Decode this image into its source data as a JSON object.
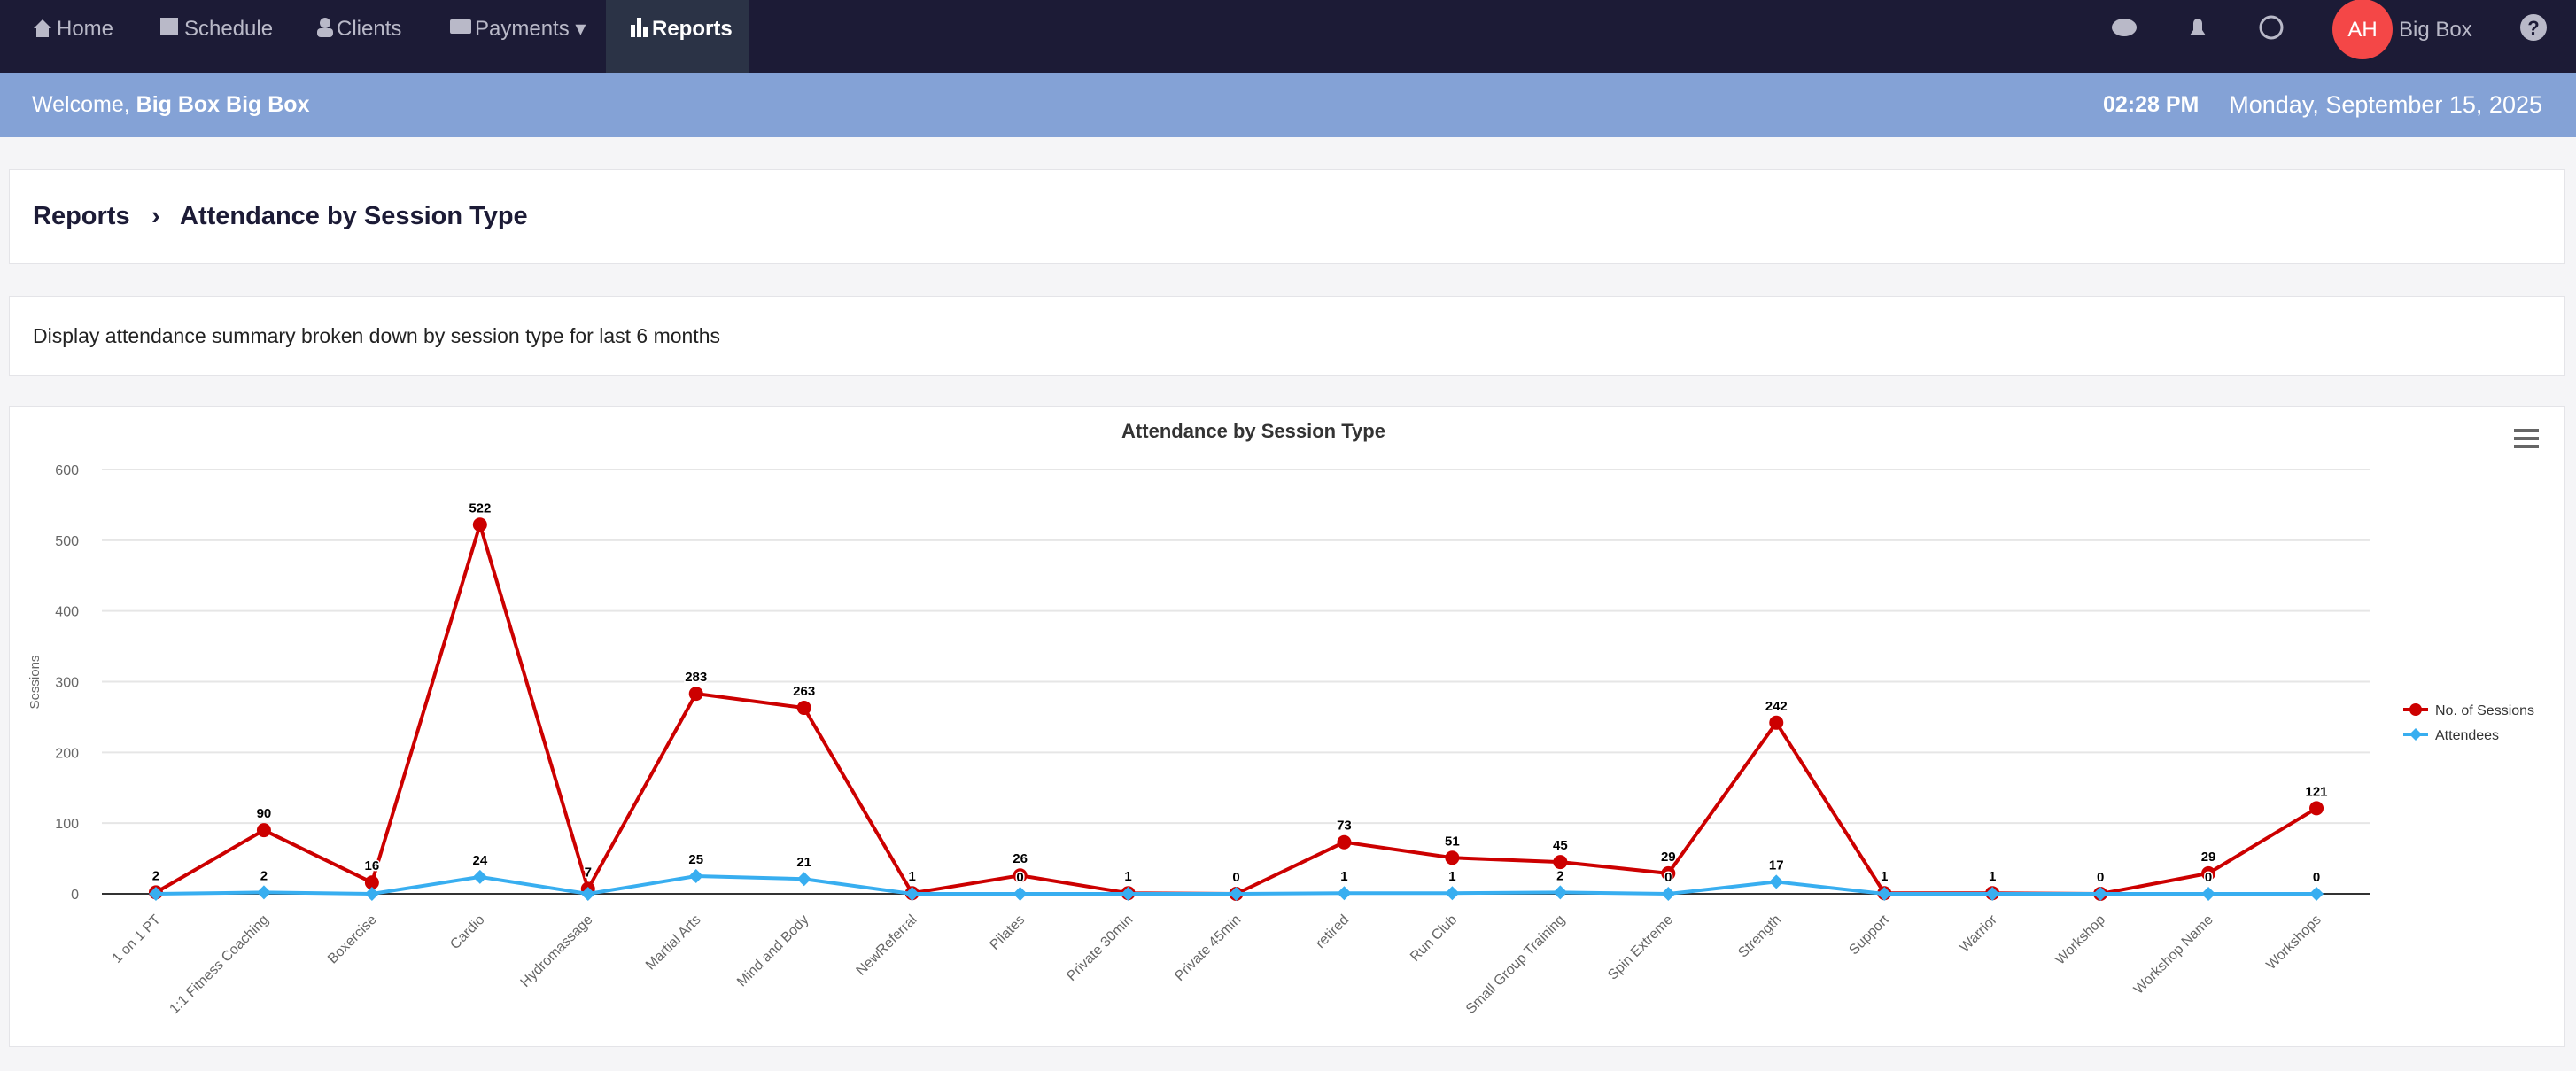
{
  "nav": {
    "items": [
      "Home",
      "Schedule",
      "Clients",
      "Payments",
      "Reports"
    ],
    "user_initials": "AH",
    "user_name": "Big Box"
  },
  "welcome": {
    "prefix": "Welcome,",
    "name": "Big Box Big Box",
    "time": "02:28 PM",
    "date": "Monday, September 15, 2025"
  },
  "breadcrumb": {
    "root": "Reports",
    "current": "Attendance by Session Type"
  },
  "description": "Display attendance summary broken down by session type for last 6 months",
  "chart_data": {
    "type": "line",
    "title": "Attendance by Session Type",
    "y_label": "Sessions",
    "categories": [
      "1 on 1 PT",
      "1:1 Fitness Coaching",
      "Boxercise",
      "Cardio",
      "Hydromassage",
      "Martial Arts",
      "Mind and Body",
      "NewReferral",
      "Pilates",
      "Private 30min",
      "Private 45min",
      "retired",
      "Run Club",
      "Small Group Training",
      "Spin Extreme",
      "Strength",
      "Support",
      "Warrior",
      "Workshop",
      "Workshop Name",
      "Workshops"
    ],
    "series": [
      {
        "name": "No. of Sessions",
        "color": "#cc0000",
        "values": [
          2,
          90,
          16,
          522,
          7,
          283,
          263,
          1,
          26,
          1,
          0,
          73,
          51,
          45,
          29,
          242,
          1,
          1,
          0,
          29,
          121
        ]
      },
      {
        "name": "Attendees",
        "color": "#38aef0",
        "values": [
          0,
          2,
          0,
          24,
          0,
          25,
          21,
          0,
          0,
          0,
          0,
          1,
          1,
          2,
          0,
          17,
          0,
          0,
          0,
          0,
          0
        ]
      }
    ],
    "ylim": [
      0,
      600
    ],
    "yticks": [
      0,
      100,
      200,
      300,
      400,
      500,
      600
    ],
    "grid": true,
    "legend": "right"
  }
}
